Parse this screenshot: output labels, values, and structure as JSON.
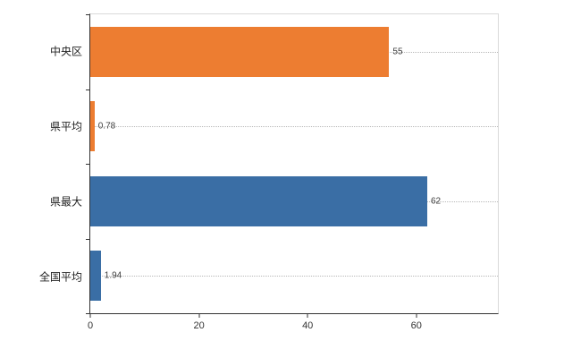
{
  "chart_data": {
    "type": "bar",
    "orientation": "horizontal",
    "title": "",
    "xlabel": "",
    "ylabel": "",
    "categories": [
      "中央区",
      "県平均",
      "県最大",
      "全国平均"
    ],
    "values": [
      55,
      0.78,
      62,
      1.94
    ],
    "value_labels": [
      "55",
      "0.78",
      "62",
      "1.94"
    ],
    "bar_colors": [
      "#ed7d31",
      "#ed7d31",
      "#3a6ea5",
      "#3a6ea5"
    ],
    "x_ticks": [
      0,
      20,
      40,
      60
    ],
    "x_tick_labels": [
      "0",
      "20",
      "40",
      "60"
    ],
    "xlim": [
      0,
      75
    ],
    "grid": "horizontal-dotted-at-category-centers",
    "legend": "none",
    "colors": {
      "axis": "#333333",
      "frame": "#d9d9d9",
      "gridline": "#b8b8b8",
      "value_text": "#404040",
      "category_text": "#222222",
      "background": "#ffffff"
    }
  }
}
